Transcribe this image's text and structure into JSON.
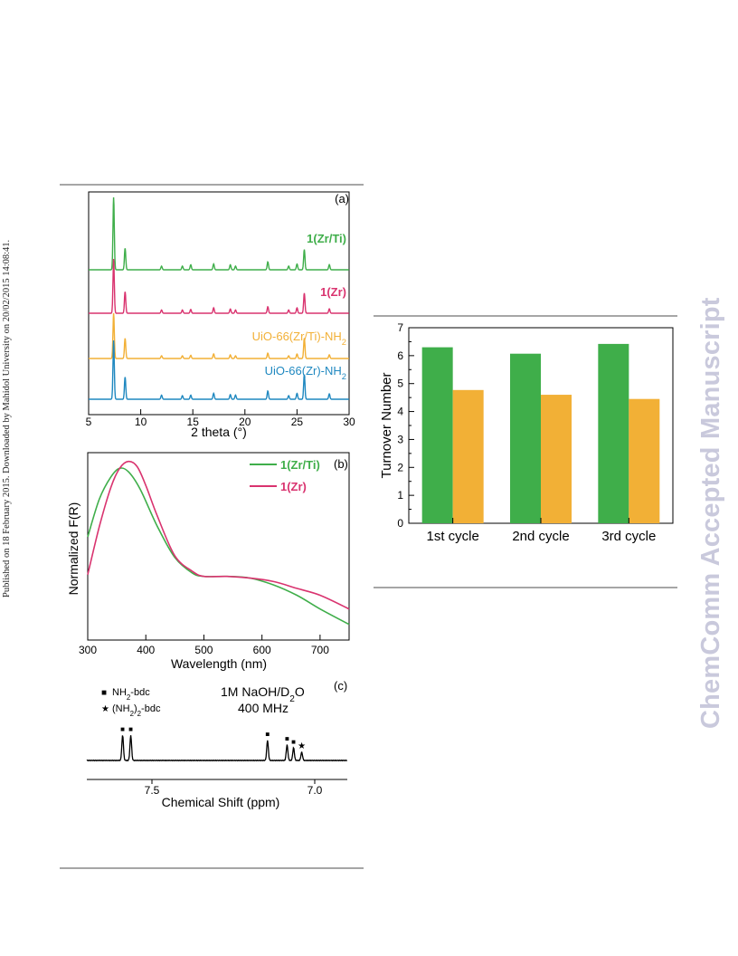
{
  "margin_note": "Published on 18 February 2015. Downloaded by Mahidol University on 20/02/2015 14:08:41.",
  "watermark": "ChemComm Accepted Manuscript",
  "colors": {
    "green": "#3fae4a",
    "pink": "#d9336f",
    "orange": "#f2b036",
    "blue": "#1f88c0",
    "rule": "#a6a6a6",
    "watermark": "#c9c9dc"
  },
  "chart_data": [
    {
      "type": "line",
      "panel_label": "(a)",
      "xlabel": "2 theta (°)",
      "ylabel": "",
      "xlim": [
        5,
        30
      ],
      "xticks": [
        "5",
        "10",
        "15",
        "20",
        "25",
        "30"
      ],
      "series": [
        {
          "name": "1(Zr/Ti)",
          "color": "#3fae4a",
          "peaks": [
            [
              7.4,
              1.0
            ],
            [
              8.5,
              0.3
            ],
            [
              12.0,
              0.05
            ],
            [
              14.0,
              0.05
            ],
            [
              14.8,
              0.07
            ],
            [
              17.0,
              0.08
            ],
            [
              18.6,
              0.07
            ],
            [
              19.1,
              0.05
            ],
            [
              22.2,
              0.11
            ],
            [
              24.2,
              0.05
            ],
            [
              25.0,
              0.08
            ],
            [
              25.7,
              0.28
            ],
            [
              28.1,
              0.07
            ]
          ]
        },
        {
          "name": "1(Zr)",
          "color": "#d9336f",
          "peaks": [
            [
              7.4,
              1.0
            ],
            [
              8.5,
              0.4
            ],
            [
              12.0,
              0.06
            ],
            [
              14.0,
              0.06
            ],
            [
              14.8,
              0.07
            ],
            [
              17.0,
              0.1
            ],
            [
              18.6,
              0.08
            ],
            [
              19.1,
              0.06
            ],
            [
              22.2,
              0.12
            ],
            [
              24.2,
              0.06
            ],
            [
              25.0,
              0.1
            ],
            [
              25.7,
              0.37
            ],
            [
              28.1,
              0.08
            ]
          ]
        },
        {
          "name": "UiO-66(Zr/Ti)-NH2",
          "color": "#f2b036",
          "peaks": [
            [
              7.4,
              1.0
            ],
            [
              8.5,
              0.45
            ],
            [
              12.0,
              0.06
            ],
            [
              14.0,
              0.06
            ],
            [
              14.8,
              0.07
            ],
            [
              17.0,
              0.1
            ],
            [
              18.6,
              0.08
            ],
            [
              19.1,
              0.06
            ],
            [
              22.2,
              0.12
            ],
            [
              24.2,
              0.06
            ],
            [
              25.0,
              0.1
            ],
            [
              25.7,
              0.45
            ],
            [
              28.1,
              0.08
            ]
          ]
        },
        {
          "name": "UiO-66(Zr)-NH2",
          "color": "#1f88c0",
          "peaks": [
            [
              7.4,
              1.0
            ],
            [
              8.5,
              0.38
            ],
            [
              12.0,
              0.07
            ],
            [
              14.0,
              0.06
            ],
            [
              14.8,
              0.07
            ],
            [
              17.0,
              0.1
            ],
            [
              18.6,
              0.08
            ],
            [
              19.1,
              0.07
            ],
            [
              22.2,
              0.14
            ],
            [
              24.2,
              0.06
            ],
            [
              25.0,
              0.1
            ],
            [
              25.7,
              0.42
            ],
            [
              28.1,
              0.09
            ]
          ]
        }
      ]
    },
    {
      "type": "line",
      "panel_label": "(b)",
      "xlabel": "Wavelength (nm)",
      "ylabel": "Normalized F(R)",
      "xlim": [
        300,
        750
      ],
      "xticks": [
        "300",
        "400",
        "500",
        "600",
        "700"
      ],
      "legend": "top-right",
      "series": [
        {
          "name": "1(Zr/Ti)",
          "color": "#3fae4a",
          "x": [
            300,
            320,
            340,
            355,
            370,
            390,
            420,
            450,
            480,
            500,
            540,
            580,
            620,
            660,
            700,
            750
          ],
          "y": [
            0.58,
            0.8,
            0.93,
            0.98,
            0.96,
            0.86,
            0.64,
            0.46,
            0.37,
            0.35,
            0.35,
            0.34,
            0.3,
            0.24,
            0.16,
            0.07
          ]
        },
        {
          "name": "1(Zr)",
          "color": "#d9336f",
          "x": [
            300,
            320,
            340,
            355,
            370,
            385,
            400,
            420,
            450,
            480,
            500,
            540,
            580,
            620,
            660,
            700,
            750
          ],
          "y": [
            0.36,
            0.64,
            0.87,
            0.98,
            1.02,
            0.99,
            0.88,
            0.7,
            0.47,
            0.38,
            0.35,
            0.35,
            0.34,
            0.32,
            0.28,
            0.24,
            0.16
          ]
        }
      ]
    },
    {
      "type": "bar",
      "panel_label": "",
      "ylabel": "Turnover Number",
      "xlabel": "",
      "ylim": [
        0,
        7
      ],
      "yticks": [
        "0",
        "1",
        "2",
        "3",
        "4",
        "5",
        "6",
        "7"
      ],
      "categories": [
        "1st cycle",
        "2nd cycle",
        "3rd cycle"
      ],
      "series": [
        {
          "color": "#3fae4a",
          "values": [
            6.3,
            6.07,
            6.42
          ]
        },
        {
          "color": "#f2b036",
          "values": [
            4.77,
            4.6,
            4.45
          ]
        }
      ]
    },
    {
      "type": "line",
      "panel_label": "(c)",
      "xlabel": "Chemical Shift (ppm)",
      "xlim": [
        7.7,
        6.9
      ],
      "xticks": [
        "7.5",
        "7.0"
      ],
      "legend_items": [
        {
          "symbol": "■",
          "text": "NH2-bdc"
        },
        {
          "symbol": "★",
          "text": "(NH2)2-bdc"
        }
      ],
      "conditions": [
        "1M NaOH/D2O",
        "400 MHz"
      ],
      "peaks": [
        {
          "ppm": 7.59,
          "height": 1.0,
          "marker": "■"
        },
        {
          "ppm": 7.565,
          "height": 1.0,
          "marker": "■"
        },
        {
          "ppm": 7.145,
          "height": 0.8,
          "marker": "■"
        },
        {
          "ppm": 7.085,
          "height": 0.62,
          "marker": "■"
        },
        {
          "ppm": 7.065,
          "height": 0.5,
          "marker": "■"
        },
        {
          "ppm": 7.04,
          "height": 0.33,
          "marker": "★"
        }
      ]
    }
  ]
}
